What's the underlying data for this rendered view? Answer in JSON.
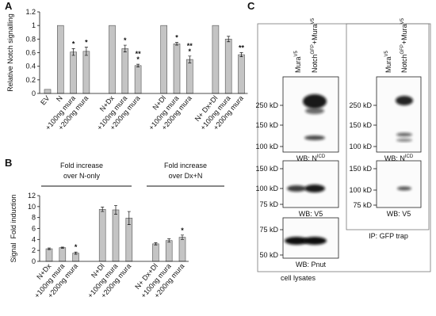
{
  "chart_data": [
    {
      "type": "bar",
      "panel_label": "A",
      "ylabel": "Relative Notch signalling",
      "categories": [
        "EV",
        "N",
        "+100ng mura",
        "+200ng mura",
        "N+Dx",
        "+100ng mura",
        "+200ng mura",
        "N+Dl",
        "+100ng mura",
        "+200ng mura",
        "N+ Dx+Dl",
        "+100ng mura",
        "+200ng mura"
      ],
      "values": [
        0.06,
        1.0,
        0.61,
        0.62,
        1.0,
        0.66,
        0.41,
        1.0,
        0.73,
        0.5,
        1.0,
        0.8,
        0.57
      ],
      "errors": [
        null,
        null,
        0.05,
        0.06,
        null,
        0.05,
        0.02,
        null,
        0.02,
        0.05,
        null,
        0.04,
        0.03
      ],
      "annotations": [
        null,
        null,
        [
          "*"
        ],
        [
          "*"
        ],
        null,
        [
          "*"
        ],
        [
          "**",
          "*"
        ],
        null,
        [
          "*"
        ],
        [
          "**",
          "*"
        ],
        null,
        null,
        [
          "**"
        ]
      ],
      "color": "#c4c4c4",
      "ylim": [
        0,
        1.2
      ],
      "yticks": [
        0,
        0.2,
        0.4,
        0.6,
        0.8,
        1,
        1.2
      ]
    },
    {
      "type": "bar",
      "panel_label": "B",
      "ylabel": "Signal  Fold induction",
      "headers": [
        [
          "Fold increase",
          "over N-only"
        ],
        [
          "Fold increase",
          "over Dx+N"
        ]
      ],
      "categories": [
        "N+Dx",
        "+100ng mura",
        "+200ng mura",
        "N+Dl",
        "+100ng mura",
        "+200ng mura",
        "N+ Dx+Dl",
        "+100ng mura",
        "+200ng mura"
      ],
      "values": [
        2.3,
        2.5,
        1.5,
        9.5,
        9.4,
        7.9,
        3.2,
        3.8,
        4.4
      ],
      "errors": [
        0.15,
        0.1,
        0.2,
        0.4,
        0.8,
        1.2,
        0.2,
        0.3,
        0.4
      ],
      "annotations": [
        null,
        null,
        [
          "*"
        ],
        null,
        null,
        null,
        null,
        null,
        [
          "*"
        ]
      ],
      "color": "#c4c4c4",
      "ylim": [
        0,
        12
      ],
      "yticks": [
        0,
        2,
        4,
        6,
        8,
        10,
        12
      ]
    }
  ],
  "panel_c": {
    "panel_label": "C",
    "lane_labels": [
      [
        {
          "text": "Mura"
        },
        {
          "text": "V5",
          "sup": true
        }
      ],
      [
        {
          "text": "Notch"
        },
        {
          "text": "GFP",
          "sup": true
        },
        {
          "text": "+Mura"
        },
        {
          "text": "V5",
          "sup": true
        }
      ]
    ],
    "columns": [
      {
        "caption": "cell lysates",
        "blots": [
          {
            "markers": [
              "250 kD",
              "150 kD",
              "100 kD"
            ],
            "label": [
              {
                "text": "WB: N"
              },
              {
                "text": "ICD",
                "sup": true
              }
            ]
          },
          {
            "markers": [
              "150 kD",
              "100 kD",
              "75 kD"
            ],
            "label": [
              {
                "text": "WB: V5"
              }
            ]
          },
          {
            "markers": [
              "75 kD",
              "50 kD"
            ],
            "label": [
              {
                "text": "WB: Pnut"
              }
            ]
          }
        ]
      },
      {
        "caption": "IP: GFP trap",
        "blots": [
          {
            "markers": [
              "250 kD",
              "150 kD",
              "100 kD"
            ],
            "label": [
              {
                "text": "WB: N"
              },
              {
                "text": "ICD",
                "sup": true
              }
            ]
          },
          {
            "markers": [
              "150 kD",
              "100 kD",
              "75 kD"
            ],
            "label": [
              {
                "text": "WB: V5"
              }
            ]
          }
        ]
      }
    ]
  }
}
